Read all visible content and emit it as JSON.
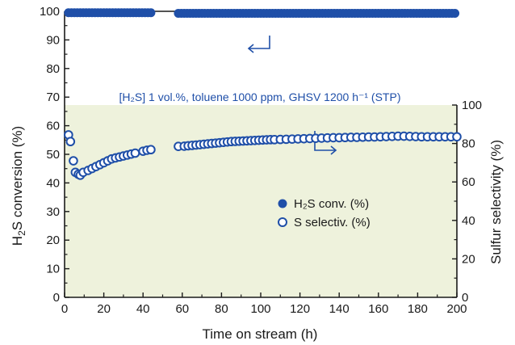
{
  "chart_data": {
    "type": "scatter",
    "title": "",
    "xlabel": "Time on stream (h)",
    "ylabel_left": "H2S conversion (%)",
    "ylabel_right": "Sulfur selectivity (%)",
    "xlim": [
      0,
      200
    ],
    "ylim_left": [
      0,
      100
    ],
    "ylim_right": [
      0,
      100
    ],
    "x_ticks": [
      0,
      20,
      40,
      60,
      80,
      100,
      120,
      140,
      160,
      180,
      200
    ],
    "y_left_ticks": [
      0,
      10,
      20,
      30,
      40,
      50,
      60,
      70,
      80,
      90,
      100
    ],
    "y_right_ticks": [
      0,
      20,
      40,
      60,
      80,
      100
    ],
    "grid": false,
    "annotation": "[H₂S] 1 vol.%, toluene 1000 ppm, GHSV 1200 h⁻¹ (STP)",
    "colors": {
      "series": "#1f4fa8",
      "annotation": "#1f4fa8",
      "shaded_region": "#eef2dc",
      "axis": "#1a1a1a"
    },
    "legend": {
      "placement": "center-right",
      "entries": [
        {
          "label": "H₂S conv. (%)",
          "marker": "filled-circle"
        },
        {
          "label": "S selectiv. (%)",
          "marker": "open-circle"
        }
      ]
    },
    "series": [
      {
        "name": "H₂S conv. (%)",
        "axis": "left",
        "marker": "filled",
        "segments": [
          {
            "x_start": 2,
            "x_end": 44,
            "step": 1.5,
            "value": 99.5
          },
          {
            "x_start": 58,
            "x_end": 200,
            "step": 1.5,
            "value": 99.3
          }
        ]
      },
      {
        "name": "S selectiv. (%)",
        "axis": "right",
        "marker": "open",
        "points": [
          [
            2,
            84.5
          ],
          [
            3,
            81
          ],
          [
            4.5,
            71
          ],
          [
            5.5,
            65
          ],
          [
            7,
            64
          ],
          [
            8,
            63.5
          ],
          [
            9.5,
            65
          ],
          [
            12,
            66
          ],
          [
            14,
            67
          ],
          [
            16,
            68
          ],
          [
            18,
            69
          ],
          [
            20,
            70
          ],
          [
            22,
            71
          ],
          [
            24,
            72
          ],
          [
            26,
            72.5
          ],
          [
            28,
            73
          ],
          [
            30,
            73.5
          ],
          [
            32,
            74
          ],
          [
            34,
            74.5
          ],
          [
            36,
            75
          ],
          [
            40,
            76
          ],
          [
            42,
            76.5
          ],
          [
            44,
            76.8
          ],
          [
            58,
            78.5
          ],
          [
            61,
            78.6
          ],
          [
            63,
            78.8
          ],
          [
            65,
            79
          ],
          [
            67,
            79.2
          ],
          [
            69,
            79.4
          ],
          [
            71,
            79.6
          ],
          [
            73,
            79.8
          ],
          [
            75,
            80
          ],
          [
            77,
            80.2
          ],
          [
            79,
            80.4
          ],
          [
            81,
            80.6
          ],
          [
            83,
            80.8
          ],
          [
            85,
            81
          ],
          [
            87,
            81.1
          ],
          [
            89,
            81.2
          ],
          [
            91,
            81.3
          ],
          [
            93,
            81.4
          ],
          [
            95,
            81.5
          ],
          [
            97,
            81.6
          ],
          [
            99,
            81.7
          ],
          [
            101,
            81.8
          ],
          [
            103,
            81.9
          ],
          [
            105,
            82
          ],
          [
            107,
            82
          ],
          [
            110,
            82.1
          ],
          [
            113,
            82.2
          ],
          [
            116,
            82.3
          ],
          [
            119,
            82.4
          ],
          [
            122,
            82.5
          ],
          [
            125,
            82.6
          ],
          [
            128,
            82.7
          ],
          [
            131,
            82.8
          ],
          [
            134,
            82.9
          ],
          [
            137,
            83
          ],
          [
            140,
            83
          ],
          [
            143,
            83.1
          ],
          [
            146,
            83.2
          ],
          [
            149,
            83.2
          ],
          [
            152,
            83.3
          ],
          [
            155,
            83.4
          ],
          [
            158,
            83.4
          ],
          [
            161,
            83.5
          ],
          [
            164,
            83.6
          ],
          [
            167,
            83.7
          ],
          [
            170,
            83.8
          ],
          [
            173,
            83.8
          ],
          [
            176,
            83.7
          ],
          [
            179,
            83.6
          ],
          [
            182,
            83.5
          ],
          [
            185,
            83.5
          ],
          [
            188,
            83.5
          ],
          [
            191,
            83.5
          ],
          [
            194,
            83.5
          ],
          [
            197,
            83.5
          ],
          [
            200,
            83.5
          ]
        ]
      }
    ]
  }
}
